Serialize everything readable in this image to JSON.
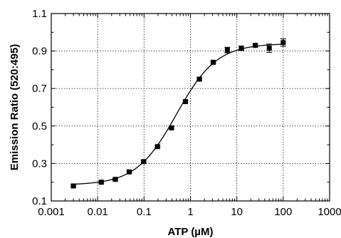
{
  "chart_data": {
    "type": "scatter",
    "title": "",
    "xlabel": "ATP (µM)",
    "ylabel": "Emission Ratio (520:495)",
    "x_scale": "log",
    "xlim": [
      0.001,
      1000
    ],
    "ylim": [
      0.1,
      1.1
    ],
    "x_tick_labels": [
      "0.001",
      "0.01",
      "0.1",
      "1",
      "10",
      "100",
      "1000"
    ],
    "x_tick_values": [
      0.001,
      0.01,
      0.1,
      1,
      10,
      100,
      1000
    ],
    "y_tick_labels": [
      "0.1",
      "0.3",
      "0.5",
      "0.7",
      "0.9",
      "1.1"
    ],
    "y_tick_values": [
      0.1,
      0.3,
      0.5,
      0.7,
      0.9,
      1.1
    ],
    "grid": true,
    "legend": "none",
    "series": [
      {
        "marker": "square",
        "x": [
          0.003,
          0.012,
          0.024,
          0.048,
          0.098,
          0.195,
          0.39,
          0.78,
          1.56,
          3.1,
          6.25,
          12.5,
          25,
          50,
          100
        ],
        "y": [
          0.18,
          0.2,
          0.215,
          0.255,
          0.31,
          0.39,
          0.49,
          0.63,
          0.75,
          0.84,
          0.905,
          0.915,
          0.93,
          0.915,
          0.945
        ],
        "error": [
          0.005,
          0.005,
          0.005,
          0.005,
          0.005,
          0.005,
          0.006,
          0.006,
          0.006,
          0.006,
          0.015,
          0.012,
          0.008,
          0.022,
          0.02
        ]
      }
    ],
    "fit": {
      "type": "sigmoidal dose-response",
      "bottom": 0.185,
      "top": 0.94,
      "ec50": 0.5,
      "hill": 1.0
    }
  }
}
